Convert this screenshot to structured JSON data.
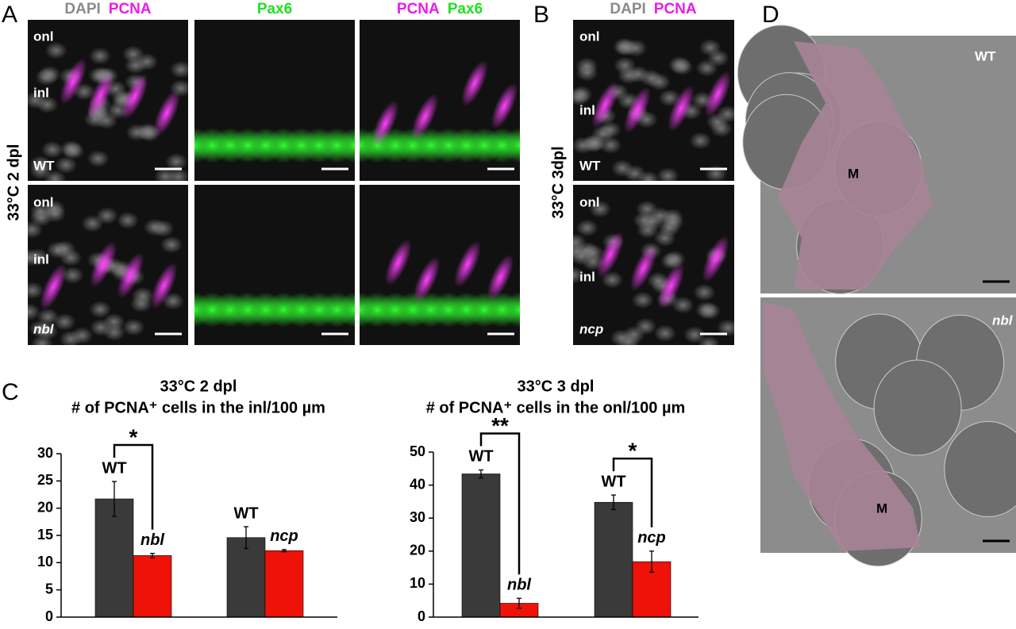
{
  "panel_a": {
    "label": "A",
    "headers": [
      [
        "DAPI",
        "PCNA"
      ],
      [
        "Pax6"
      ],
      [
        "PCNA",
        "Pax6"
      ]
    ],
    "row_label": "33°C 2 dpl",
    "rows": [
      [
        "onl",
        "inl",
        "WT"
      ],
      [
        "onl",
        "inl",
        "nbl"
      ]
    ]
  },
  "panel_b": {
    "label": "B",
    "headers": [
      "DAPI",
      "PCNA"
    ],
    "row_label": "33°C 3dpl",
    "rows": [
      [
        "onl",
        "inl",
        "WT"
      ],
      [
        "onl",
        "inl",
        "ncp"
      ]
    ]
  },
  "panel_c": {
    "label": "C"
  },
  "panel_d": {
    "label": "D",
    "top": [
      "WT",
      "M"
    ],
    "bottom": [
      "nbl",
      "M"
    ]
  },
  "chart_data": [
    {
      "type": "bar",
      "title": "33°C 2 dpl",
      "subtitle": "# of PCNA⁺ cells in the inl/100 µm",
      "categories": [
        "WT",
        "nbl",
        "WT",
        "ncp"
      ],
      "values": [
        21.7,
        11.3,
        14.6,
        12.2
      ],
      "errors": [
        3.2,
        0.4,
        2.0,
        0.2
      ],
      "colors": [
        "#3a3a3a",
        "#ee1208",
        "#3a3a3a",
        "#ee1208"
      ],
      "ylim": [
        0,
        30
      ],
      "yticks": [
        0,
        5,
        10,
        15,
        20,
        25,
        30
      ],
      "significance": [
        {
          "label": "*",
          "bars": [
            0,
            1
          ]
        }
      ]
    },
    {
      "type": "bar",
      "title": "33°C 3 dpl",
      "subtitle": "# of PCNA⁺ cells in the onl/100 µm",
      "categories": [
        "WT",
        "nbl",
        "WT",
        "ncp"
      ],
      "values": [
        43.4,
        4.2,
        34.8,
        16.8
      ],
      "errors": [
        1.2,
        1.5,
        2.2,
        3.2
      ],
      "colors": [
        "#3a3a3a",
        "#ee1208",
        "#3a3a3a",
        "#ee1208"
      ],
      "ylim": [
        0,
        50
      ],
      "yticks": [
        0,
        10,
        20,
        30,
        40,
        50
      ],
      "significance": [
        {
          "label": "**",
          "bars": [
            0,
            1
          ]
        },
        {
          "label": "*",
          "bars": [
            2,
            3
          ]
        }
      ]
    }
  ]
}
